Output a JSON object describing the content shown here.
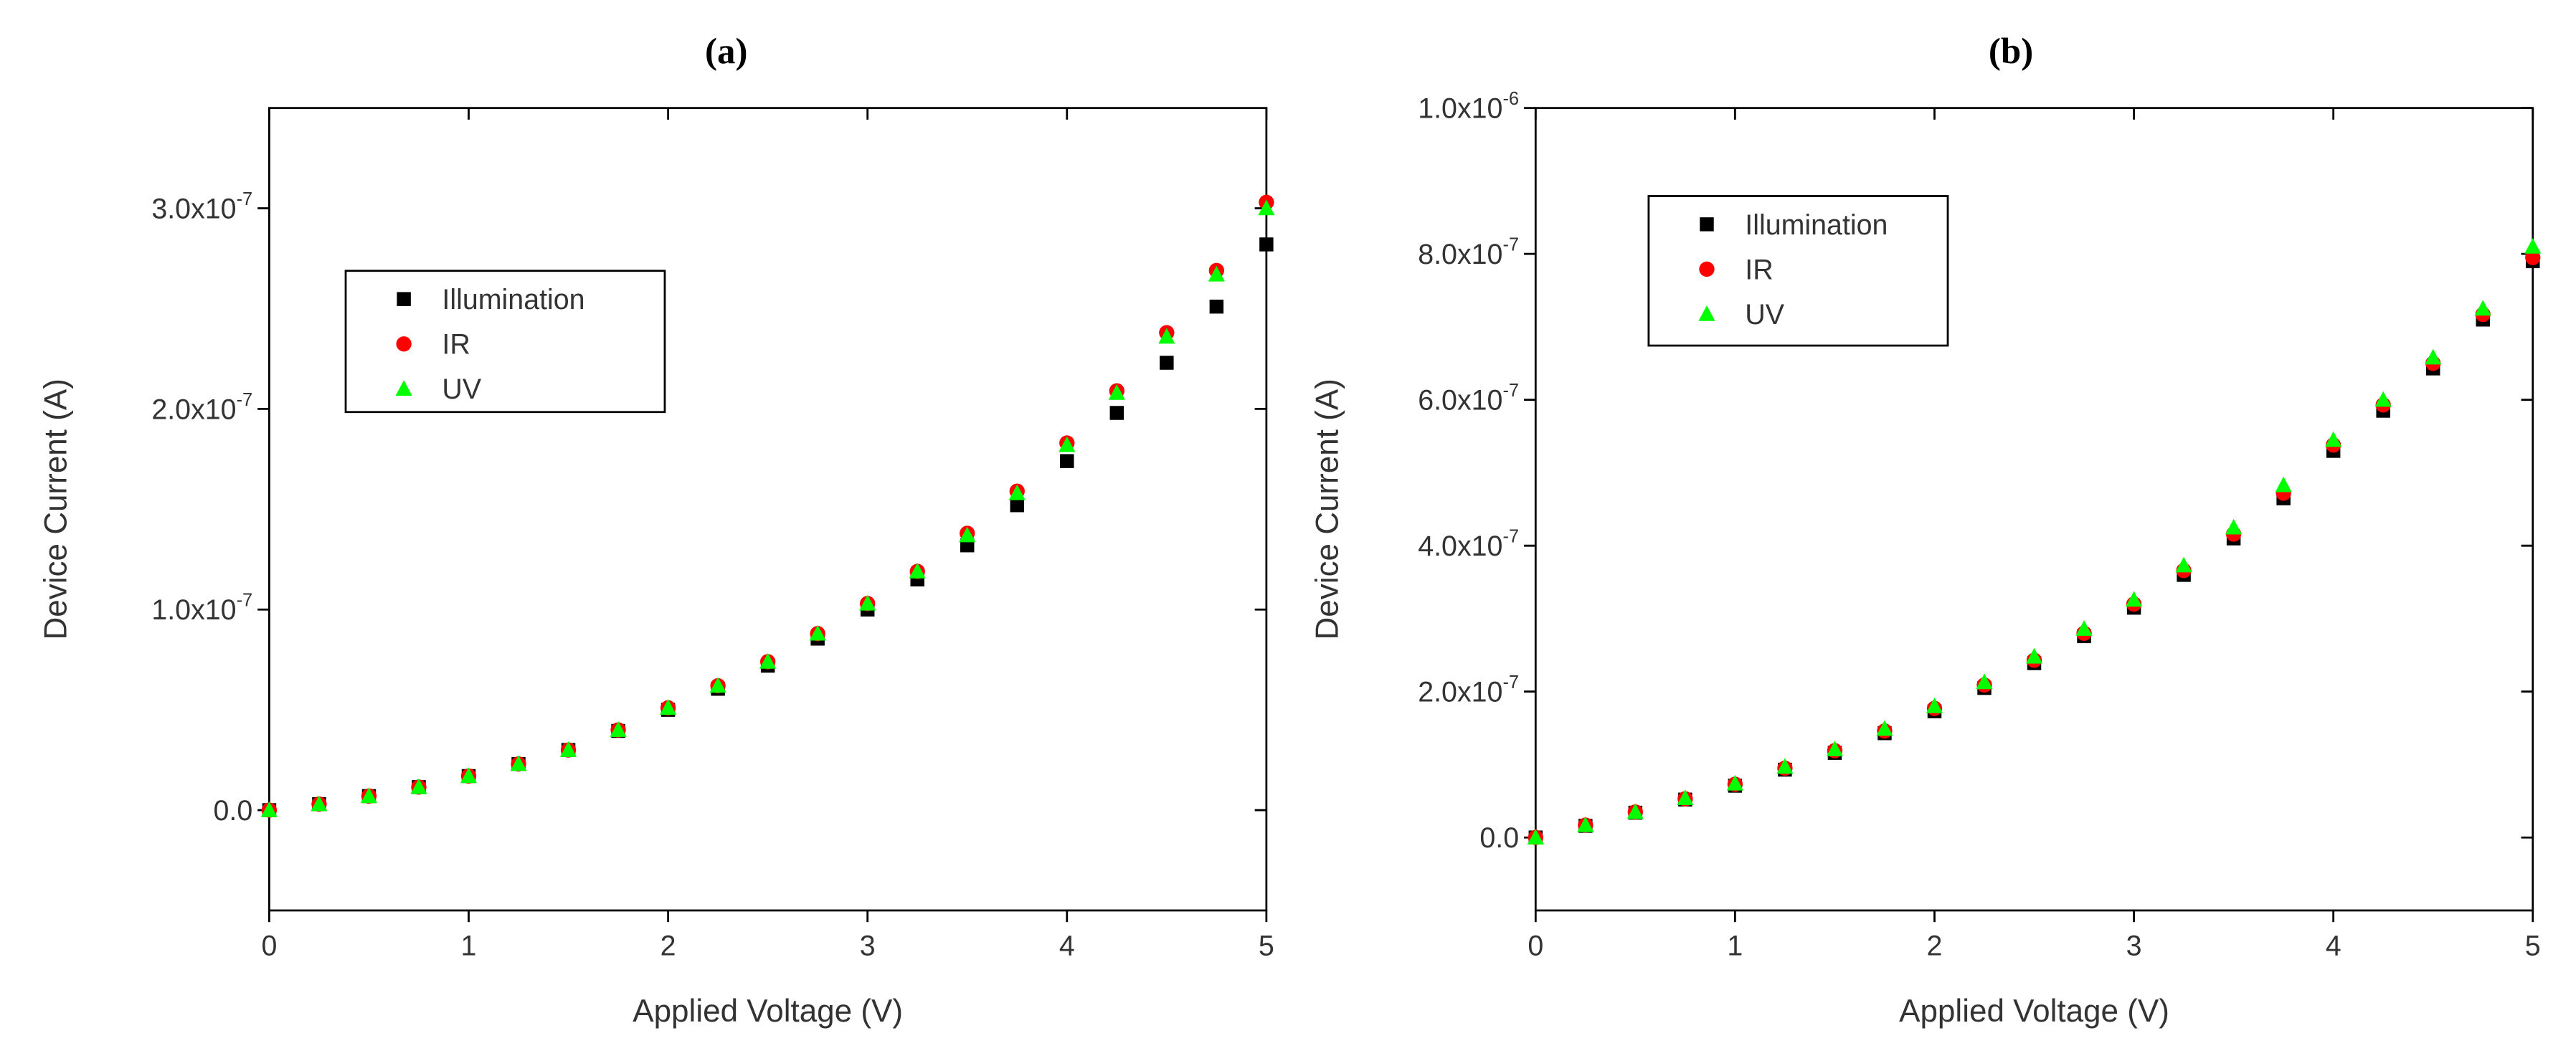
{
  "chart_data": [
    {
      "type": "scatter",
      "title": "(a)",
      "x_label": "Applied Voltage (V)",
      "y_label": "Device Current (A)",
      "x": [
        0,
        0.25,
        0.5,
        0.75,
        1,
        1.25,
        1.5,
        1.75,
        2,
        2.25,
        2.5,
        2.75,
        3,
        3.25,
        3.5,
        3.75,
        4,
        4.25,
        4.5,
        4.75,
        5
      ],
      "series": [
        {
          "name": "Illumination",
          "color": "#000000",
          "marker": "square",
          "values": [
            0,
            3e-09,
            7e-09,
            1.15e-08,
            1.7e-08,
            2.3e-08,
            3e-08,
            3.95e-08,
            5e-08,
            6.05e-08,
            7.2e-08,
            8.55e-08,
            1e-07,
            1.15e-07,
            1.32e-07,
            1.52e-07,
            1.74e-07,
            1.98e-07,
            2.23e-07,
            2.51e-07,
            2.82e-07
          ]
        },
        {
          "name": "IR",
          "color": "#ff0000",
          "marker": "circle",
          "values": [
            0,
            3e-09,
            7e-09,
            1.15e-08,
            1.7e-08,
            2.3e-08,
            3e-08,
            4e-08,
            5.1e-08,
            6.2e-08,
            7.4e-08,
            8.8e-08,
            1.03e-07,
            1.19e-07,
            1.38e-07,
            1.59e-07,
            1.83e-07,
            2.09e-07,
            2.38e-07,
            2.69e-07,
            3.03e-07
          ]
        },
        {
          "name": "UV",
          "color": "#00ff00",
          "marker": "triangle",
          "values": [
            0,
            3e-09,
            7e-09,
            1.15e-08,
            1.7e-08,
            2.3e-08,
            3e-08,
            4e-08,
            5.1e-08,
            6.2e-08,
            7.4e-08,
            8.8e-08,
            1.03e-07,
            1.19e-07,
            1.37e-07,
            1.58e-07,
            1.82e-07,
            2.08e-07,
            2.36e-07,
            2.67e-07,
            3e-07
          ]
        }
      ],
      "xlim": [
        0,
        5
      ],
      "xticks": [
        0,
        1,
        2,
        3,
        4,
        5
      ],
      "ylim": [
        -5e-08,
        3.5e-07
      ],
      "yticks": [
        {
          "value": 0,
          "label": "0.0"
        },
        {
          "value": 1e-07,
          "label": "1.0x10",
          "exponent": "-7"
        },
        {
          "value": 2e-07,
          "label": "2.0x10",
          "exponent": "-7"
        },
        {
          "value": 3e-07,
          "label": "3.0x10",
          "exponent": "-7"
        }
      ]
    },
    {
      "type": "scatter",
      "title": "(b)",
      "x_label": "Applied Voltage (V)",
      "y_label": "Device Current (A)",
      "x": [
        0,
        0.25,
        0.5,
        0.75,
        1,
        1.25,
        1.5,
        1.75,
        2,
        2.25,
        2.5,
        2.75,
        3,
        3.25,
        3.5,
        3.75,
        4,
        4.25,
        4.5,
        4.75,
        5
      ],
      "series": [
        {
          "name": "Illumination",
          "color": "#000000",
          "marker": "square",
          "values": [
            0,
            1.6e-08,
            3.4e-08,
            5.2e-08,
            7.1e-08,
            9.3e-08,
            1.16e-07,
            1.43e-07,
            1.73e-07,
            2.05e-07,
            2.39e-07,
            2.76e-07,
            3.15e-07,
            3.6e-07,
            4.1e-07,
            4.65e-07,
            5.3e-07,
            5.85e-07,
            6.43e-07,
            7.1e-07,
            7.9e-07
          ]
        },
        {
          "name": "IR",
          "color": "#ff0000",
          "marker": "circle",
          "values": [
            0,
            1.7e-08,
            3.5e-08,
            5.3e-08,
            7.3e-08,
            9.5e-08,
            1.19e-07,
            1.46e-07,
            1.77e-07,
            2.09e-07,
            2.43e-07,
            2.8e-07,
            3.2e-07,
            3.66e-07,
            4.16e-07,
            4.72e-07,
            5.38e-07,
            5.93e-07,
            6.5e-07,
            7.17e-07,
            7.95e-07
          ]
        },
        {
          "name": "UV",
          "color": "#00ff00",
          "marker": "triangle",
          "values": [
            0,
            1.7e-08,
            3.5e-08,
            5.4e-08,
            7.4e-08,
            9.7e-08,
            1.21e-07,
            1.49e-07,
            1.8e-07,
            2.13e-07,
            2.48e-07,
            2.86e-07,
            3.26e-07,
            3.73e-07,
            4.25e-07,
            4.83e-07,
            5.45e-07,
            6e-07,
            6.58e-07,
            7.25e-07,
            8.1e-07
          ]
        }
      ],
      "xlim": [
        0,
        5
      ],
      "xticks": [
        0,
        1,
        2,
        3,
        4,
        5
      ],
      "ylim": [
        -1e-07,
        1e-06
      ],
      "yticks": [
        {
          "value": 0,
          "label": "0.0"
        },
        {
          "value": 2e-07,
          "label": "2.0x10",
          "exponent": "-7"
        },
        {
          "value": 4e-07,
          "label": "4.0x10",
          "exponent": "-7"
        },
        {
          "value": 6e-07,
          "label": "6.0x10",
          "exponent": "-7"
        },
        {
          "value": 8e-07,
          "label": "8.0x10",
          "exponent": "-7"
        },
        {
          "value": 1e-06,
          "label": "1.0x10",
          "exponent": "-6"
        }
      ]
    }
  ]
}
